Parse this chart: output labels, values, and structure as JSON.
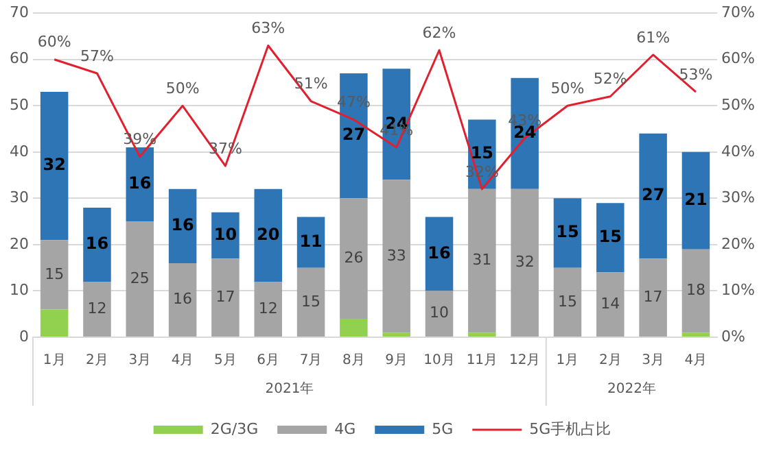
{
  "chart_data": {
    "type": "bar",
    "stacked": true,
    "categories": [
      "1月",
      "2月",
      "3月",
      "4月",
      "5月",
      "6月",
      "7月",
      "8月",
      "9月",
      "10月",
      "11月",
      "12月",
      "1月",
      "2月",
      "3月",
      "4月"
    ],
    "series": [
      {
        "name": "2G/3G",
        "color": "#92d050",
        "values": [
          6,
          0,
          0,
          0,
          0,
          0,
          0,
          4,
          1,
          0,
          1,
          0,
          0,
          0,
          0,
          1
        ]
      },
      {
        "name": "4G",
        "color": "#a5a5a5",
        "values": [
          15,
          12,
          25,
          16,
          17,
          12,
          15,
          26,
          33,
          10,
          31,
          32,
          15,
          14,
          17,
          18
        ],
        "value_labels": [
          "15",
          "12",
          "25",
          "16",
          "17",
          "12",
          "15",
          "26",
          "33",
          "10",
          "31",
          "32",
          "15",
          "14",
          "17",
          "18"
        ]
      },
      {
        "name": "5G",
        "color": "#2e75b6",
        "values": [
          32,
          16,
          16,
          16,
          10,
          20,
          11,
          27,
          24,
          16,
          15,
          24,
          15,
          15,
          27,
          21
        ],
        "value_labels": [
          "32",
          "16",
          "16",
          "16",
          "10",
          "20",
          "11",
          "27",
          "24",
          "16",
          "15",
          "24",
          "15",
          "15",
          "27",
          "21"
        ]
      },
      {
        "name": "5G手机占比",
        "type": "line",
        "axis": "y2",
        "color": "#e0202e",
        "values": [
          60,
          57,
          39,
          50,
          37,
          63,
          51,
          47,
          41,
          62,
          32,
          43,
          50,
          52,
          61,
          53
        ],
        "value_labels": [
          "60%",
          "57%",
          "39%",
          "50%",
          "37%",
          "63%",
          "51%",
          "47%",
          "41%",
          "62%",
          "32%",
          "43%",
          "50%",
          "52%",
          "61%",
          "53%"
        ]
      }
    ],
    "ylim": [
      0,
      70
    ],
    "yticks": [
      0,
      10,
      20,
      30,
      40,
      50,
      60,
      70
    ],
    "y2lim": [
      0,
      70
    ],
    "y2ticks": [
      {
        "value": 0,
        "label": "0%"
      },
      {
        "value": 10,
        "label": "10%"
      },
      {
        "value": 20,
        "label": "20%"
      },
      {
        "value": 30,
        "label": "30%"
      },
      {
        "value": 40,
        "label": "40%"
      },
      {
        "value": 50,
        "label": "50%"
      },
      {
        "value": 60,
        "label": "60%"
      },
      {
        "value": 70,
        "label": "70%"
      }
    ],
    "annotations": [
      "2021年",
      "2022年"
    ],
    "grid": "y",
    "legend": "bottom",
    "marker": "none"
  }
}
